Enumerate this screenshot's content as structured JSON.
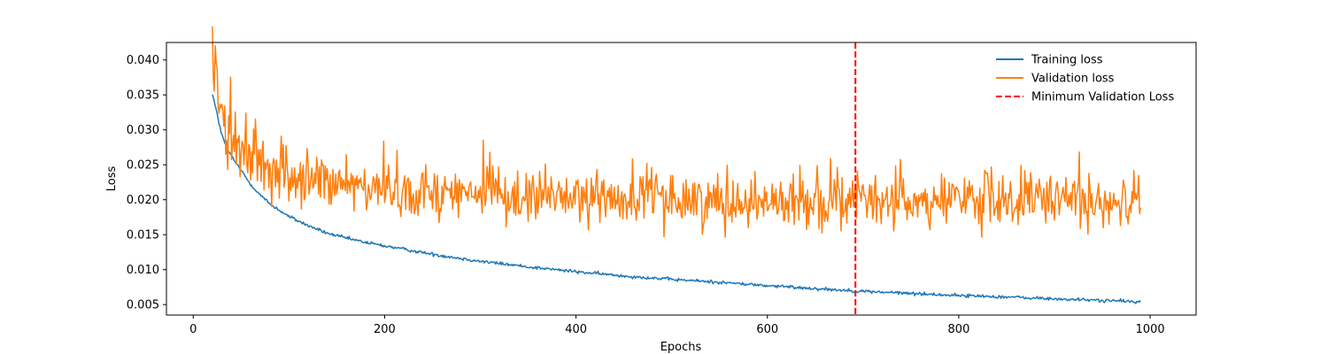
{
  "chart_data": {
    "type": "line",
    "title": "",
    "xlabel": "Epochs",
    "ylabel": "Loss",
    "xlim": [
      -28,
      1048
    ],
    "ylim": [
      0.0035,
      0.0425
    ],
    "x_ticks": [
      0,
      200,
      400,
      600,
      800,
      1000
    ],
    "x_tick_labels": [
      "0",
      "200",
      "400",
      "600",
      "800",
      "1000"
    ],
    "y_ticks": [
      0.005,
      0.01,
      0.015,
      0.02,
      0.025,
      0.03,
      0.035,
      0.04
    ],
    "y_tick_labels": [
      "0.005",
      "0.010",
      "0.015",
      "0.020",
      "0.025",
      "0.030",
      "0.035",
      "0.040"
    ],
    "grid": false,
    "legend_position": "top-right",
    "series": [
      {
        "name": "Training loss",
        "color": "#1f77b4",
        "x": [
          20,
          25,
          30,
          35,
          40,
          45,
          50,
          60,
          70,
          80,
          90,
          100,
          120,
          140,
          160,
          180,
          200,
          250,
          300,
          350,
          400,
          450,
          500,
          550,
          600,
          650,
          700,
          750,
          800,
          850,
          900,
          950,
          990
        ],
        "y": [
          0.0352,
          0.0322,
          0.0292,
          0.0274,
          0.0262,
          0.0252,
          0.0242,
          0.0222,
          0.0207,
          0.0194,
          0.0185,
          0.0176,
          0.0163,
          0.0152,
          0.0145,
          0.0139,
          0.0134,
          0.0122,
          0.0112,
          0.0104,
          0.0097,
          0.0091,
          0.0086,
          0.0082,
          0.0077,
          0.0073,
          0.0069,
          0.0066,
          0.0063,
          0.0061,
          0.0058,
          0.0056,
          0.0054
        ]
      },
      {
        "name": "Validation loss",
        "color": "#ff7f0e",
        "x": [
          20,
          25,
          30,
          35,
          40,
          45,
          50,
          60,
          70,
          80,
          90,
          100,
          120,
          140,
          160,
          180,
          200,
          250,
          300,
          350,
          400,
          450,
          500,
          550,
          600,
          650,
          700,
          750,
          800,
          850,
          900,
          950,
          990
        ],
        "y": [
          0.041,
          0.0355,
          0.033,
          0.0295,
          0.028,
          0.0275,
          0.027,
          0.026,
          0.025,
          0.0245,
          0.024,
          0.0235,
          0.0228,
          0.0223,
          0.022,
          0.0218,
          0.0215,
          0.021,
          0.0207,
          0.0205,
          0.0203,
          0.0202,
          0.0201,
          0.02,
          0.0199,
          0.0199,
          0.0198,
          0.0198,
          0.0198,
          0.0198,
          0.0198,
          0.0198,
          0.0198
        ]
      }
    ],
    "reference_lines": [
      {
        "name": "Minimum Validation Loss",
        "orientation": "vertical",
        "x": 692,
        "color": "#ff0000",
        "style": "dashed"
      }
    ]
  }
}
